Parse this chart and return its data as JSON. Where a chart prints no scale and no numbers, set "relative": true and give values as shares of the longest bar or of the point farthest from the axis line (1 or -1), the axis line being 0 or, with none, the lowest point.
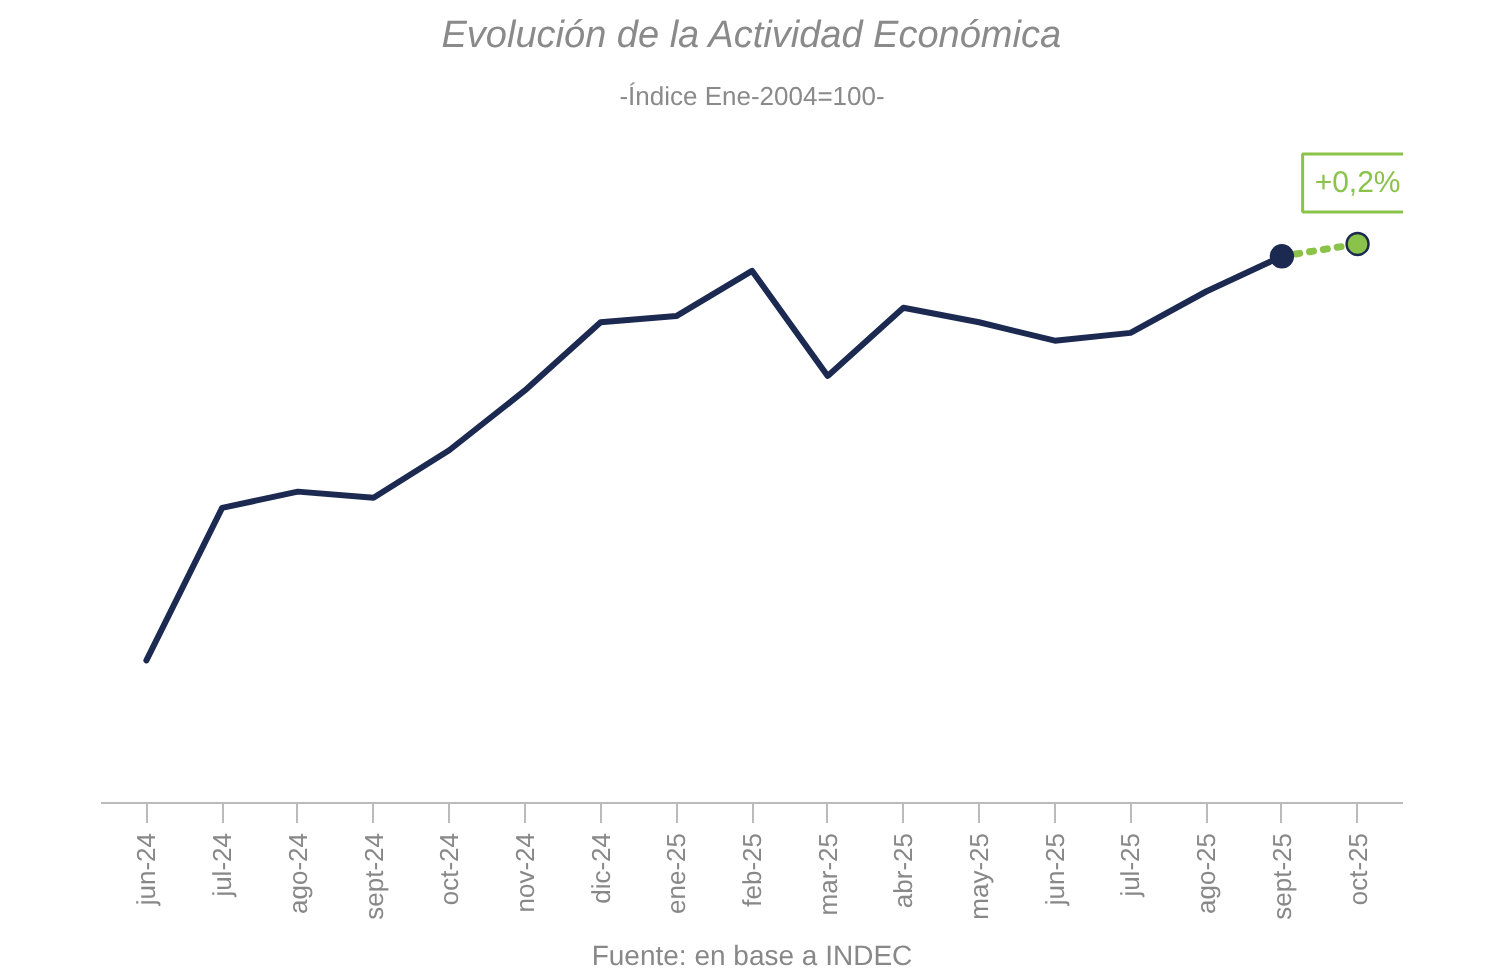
{
  "chart_data": {
    "type": "line",
    "title": "Evolución de la Actividad Económica",
    "subtitle": "-Índice Ene-2004=100-",
    "relative": true,
    "grid": false,
    "categories": [
      "jun-24",
      "jul-24",
      "ago-24",
      "sept-24",
      "oct-24",
      "nov-24",
      "dic-24",
      "ene-25",
      "feb-25",
      "mar-25",
      "abr-25",
      "may-25",
      "jun-25",
      "jul-25",
      "ago-25",
      "sept-25",
      "oct-25"
    ],
    "series": [
      {
        "color": "#1c2a52",
        "line_style": "solid",
        "marker": "none",
        "values": [
          0.255,
          0.528,
          0.557,
          0.546,
          0.631,
          0.738,
          0.86,
          0.871,
          0.952,
          0.764,
          0.886,
          0.86,
          0.827,
          0.841,
          0.915,
          0.978,
          null
        ]
      },
      {
        "color": "#8bc34a",
        "line_style": "dotted",
        "marker": "circle",
        "colors": [
          null,
          null,
          null,
          null,
          null,
          null,
          null,
          null,
          null,
          null,
          null,
          null,
          null,
          null,
          null,
          "#1c2a52",
          "#8bc34a"
        ],
        "values": [
          null,
          null,
          null,
          null,
          null,
          null,
          null,
          null,
          null,
          null,
          null,
          null,
          null,
          null,
          null,
          0.978,
          1
        ]
      }
    ],
    "annotations": [
      {
        "text": "+0,2%",
        "x": "oct-25",
        "y": 1
      },
      "Fuente: en base a INDEC"
    ]
  }
}
